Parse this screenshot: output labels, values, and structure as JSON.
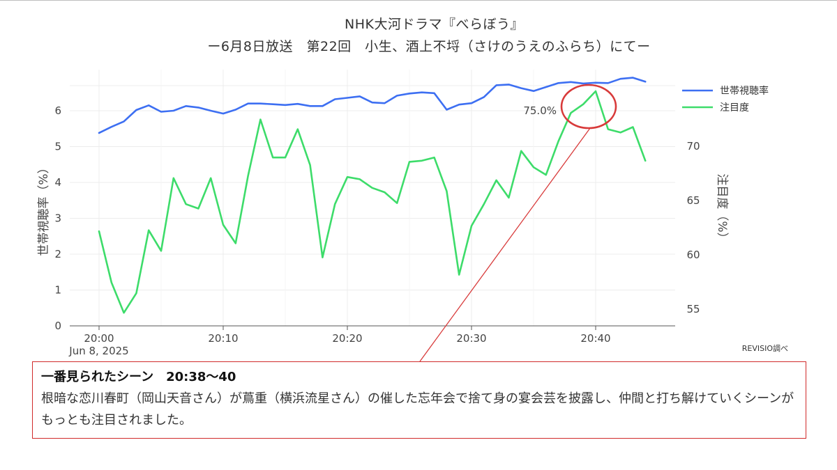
{
  "title": {
    "line1": "NHK大河ドラマ『べらぼう』",
    "line2": "ー6月8日放送　第22回　小生、酒上不埒（さけのうえのふらち）にてー"
  },
  "source_note": "REVISIO調べ",
  "note_box": {
    "heading": "一番見られたシーン",
    "heading_time": "20:38〜40",
    "body": "根暗な恋川春町（岡山天音さん）が蔦重（横浜流星さん）の催した忘年会で捨て身の宴会芸を披露し、仲間と打ち解けていくシーンがもっとも注目されました。"
  },
  "colors": {
    "rating": "#3d6ff2",
    "attention": "#3ddc6a",
    "highlight": "#d83a3a",
    "grid": "#ececec"
  },
  "chart_data": {
    "type": "line",
    "title": "NHK大河ドラマ『べらぼう』",
    "subtitle": "ー6月8日放送　第22回　小生、酒上不埒（さけのうえのふらち）にてー",
    "x_unit": "minute",
    "x": [
      "20:00",
      "20:01",
      "20:02",
      "20:03",
      "20:04",
      "20:05",
      "20:06",
      "20:07",
      "20:08",
      "20:09",
      "20:10",
      "20:11",
      "20:12",
      "20:13",
      "20:14",
      "20:15",
      "20:16",
      "20:17",
      "20:18",
      "20:19",
      "20:20",
      "20:21",
      "20:22",
      "20:23",
      "20:24",
      "20:25",
      "20:26",
      "20:27",
      "20:28",
      "20:29",
      "20:30",
      "20:31",
      "20:32",
      "20:33",
      "20:34",
      "20:35",
      "20:36",
      "20:37",
      "20:38",
      "20:39",
      "20:40",
      "20:41",
      "20:42",
      "20:43",
      "20:44"
    ],
    "x_ticks": [
      "20:00",
      "20:10",
      "20:20",
      "20:30",
      "20:40"
    ],
    "x_date_label": "Jun 8, 2025",
    "y_left": {
      "label": "世帯視聴率（%）",
      "range": [
        0,
        6.9
      ],
      "ticks": [
        0,
        1,
        2,
        3,
        4,
        5,
        6
      ]
    },
    "y_right": {
      "label": "注目度（%）",
      "range": [
        53,
        75.9
      ],
      "ticks": [
        55,
        60,
        65,
        70
      ]
    },
    "series": [
      {
        "name": "世帯視聴率",
        "axis": "left",
        "values": [
          5.38,
          5.55,
          5.7,
          6.02,
          6.15,
          5.97,
          6.0,
          6.13,
          6.09,
          6.0,
          5.92,
          6.03,
          6.2,
          6.2,
          6.18,
          6.16,
          6.19,
          6.13,
          6.13,
          6.32,
          6.36,
          6.4,
          6.23,
          6.21,
          6.42,
          6.48,
          6.51,
          6.49,
          6.03,
          6.17,
          6.21,
          6.38,
          6.71,
          6.73,
          6.63,
          6.55,
          6.66,
          6.77,
          6.8,
          6.76,
          6.78,
          6.77,
          6.89,
          6.92,
          6.81
        ]
      },
      {
        "name": "注目度",
        "axis": "right",
        "values": [
          62.1,
          57.4,
          54.6,
          56.4,
          62.2,
          60.3,
          67.0,
          64.6,
          64.2,
          67.0,
          62.7,
          61.0,
          67.2,
          72.4,
          68.9,
          68.9,
          71.5,
          68.2,
          59.7,
          64.6,
          67.1,
          66.9,
          66.1,
          65.7,
          64.7,
          68.5,
          68.6,
          68.9,
          65.8,
          58.1,
          62.6,
          64.6,
          66.8,
          65.2,
          69.5,
          68.0,
          67.3,
          70.4,
          73.0,
          73.8,
          75.0,
          71.5,
          71.2,
          71.7,
          68.6
        ]
      }
    ],
    "annotations": [
      {
        "text": "75.0%",
        "x": "20:40",
        "series": "注目度"
      }
    ],
    "grid": true,
    "legend": "top-right"
  }
}
